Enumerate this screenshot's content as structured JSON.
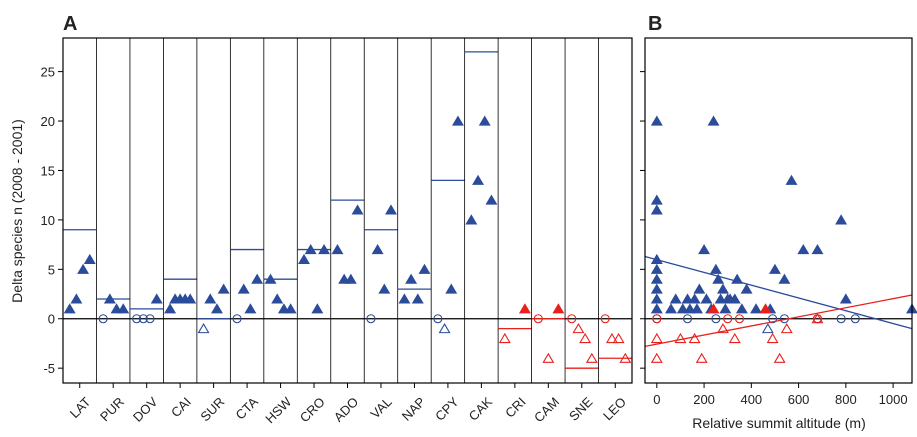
{
  "chart_data": [
    {
      "type": "strip",
      "label": "A",
      "ylabel": "Delta species n (2008 - 2001)",
      "ylim": [
        -6.5,
        28.4
      ],
      "yticks": [
        -5,
        0,
        5,
        10,
        15,
        20,
        25
      ],
      "categories": [
        "LAT",
        "PUR",
        "DOV",
        "CAI",
        "SUR",
        "CTA",
        "HSW",
        "CRO",
        "ADO",
        "VAL",
        "NAP",
        "CPY",
        "CAK",
        "CRI",
        "CAM",
        "SNE",
        "LEO"
      ],
      "colors": [
        "#2b4c9b",
        "#2b4c9b",
        "#2b4c9b",
        "#2b4c9b",
        "#2b4c9b",
        "#2b4c9b",
        "#2b4c9b",
        "#2b4c9b",
        "#2b4c9b",
        "#2b4c9b",
        "#2b4c9b",
        "#2b4c9b",
        "#2b4c9b",
        "#e8201c",
        "#e8201c",
        "#e8201c",
        "#e8201c"
      ],
      "means": [
        9,
        2,
        1,
        4,
        0,
        7,
        4,
        7,
        12,
        9,
        3,
        14,
        27,
        -1,
        0,
        -5,
        -4
      ],
      "open_circles": [
        [],
        [
          0
        ],
        [
          0,
          0,
          0
        ],
        [],
        [],
        [
          0
        ],
        [],
        [],
        [],
        [
          0
        ],
        [],
        [
          0
        ],
        [],
        [],
        [
          0
        ],
        [
          0
        ],
        [
          0
        ]
      ],
      "open_triangles": [
        [],
        [],
        [],
        [],
        [
          -1
        ],
        [],
        [],
        [],
        [],
        [],
        [],
        [
          -1
        ],
        [],
        [
          -2
        ],
        [
          -4
        ],
        [
          -1,
          -2,
          -4
        ],
        [
          -2,
          -2,
          -4
        ]
      ],
      "filled_triangles": [
        [
          1,
          2,
          5,
          6
        ],
        [
          2,
          1,
          1
        ],
        [
          2
        ],
        [
          1,
          2,
          2,
          2,
          2
        ],
        [
          2,
          1,
          3
        ],
        [
          3,
          1,
          4
        ],
        [
          4,
          2,
          1,
          1
        ],
        [
          6,
          7,
          1,
          7
        ],
        [
          7,
          4,
          4,
          11
        ],
        [
          7,
          3,
          11
        ],
        [
          2,
          4,
          2,
          5
        ],
        [
          3,
          20
        ],
        [
          10,
          14,
          20,
          12
        ],
        [
          1
        ],
        [
          1
        ],
        [],
        []
      ]
    },
    {
      "type": "scatter",
      "label": "B",
      "xlabel": "Relative summit altitude (m)",
      "xlim": [
        -50,
        1080
      ],
      "xticks": [
        0,
        200,
        400,
        600,
        800,
        1000
      ],
      "ylim": [
        -6.5,
        28.4
      ],
      "yticks": [
        -5,
        0,
        5,
        10,
        15,
        20,
        25
      ],
      "groups": [
        {
          "marker": "filled-triangle",
          "color": "#2b4c9b",
          "x": [
            0,
            0,
            0,
            0,
            0,
            0,
            0,
            0,
            0,
            60,
            80,
            110,
            130,
            140,
            160,
            170,
            180,
            200,
            210,
            230,
            240,
            250,
            260,
            270,
            280,
            290,
            300,
            310,
            330,
            340,
            360,
            380,
            420,
            480,
            500,
            540,
            570,
            620,
            680,
            780,
            800,
            1080
          ],
          "y": [
            20,
            12,
            11,
            6,
            5,
            4,
            3,
            2,
            1,
            1,
            2,
            1,
            2,
            1,
            2,
            1,
            3,
            7,
            2,
            1,
            20,
            5,
            4,
            2,
            3,
            1,
            2,
            2,
            2,
            4,
            1,
            3,
            1,
            1,
            5,
            4,
            14,
            7,
            7,
            10,
            2,
            1
          ]
        },
        {
          "marker": "open-circle",
          "color": "#2b4c9b",
          "x": [
            0,
            130,
            250,
            490,
            540,
            680,
            780,
            840
          ],
          "y": [
            0,
            0,
            0,
            0,
            0,
            0,
            0,
            0
          ]
        },
        {
          "marker": "open-triangle",
          "color": "#2b4c9b",
          "x": [
            470
          ],
          "y": [
            -1
          ]
        },
        {
          "marker": "filled-triangle",
          "color": "#e8201c",
          "x": [
            240,
            460
          ],
          "y": [
            1,
            1
          ]
        },
        {
          "marker": "open-circle",
          "color": "#e8201c",
          "x": [
            0,
            300,
            350,
            680
          ],
          "y": [
            0,
            0,
            0,
            0
          ]
        },
        {
          "marker": "open-triangle",
          "color": "#e8201c",
          "x": [
            0,
            0,
            100,
            160,
            190,
            280,
            330,
            490,
            520,
            550,
            680
          ],
          "y": [
            -4,
            -2,
            -2,
            -2,
            -4,
            -1,
            -2,
            -2,
            -4,
            -1,
            0
          ]
        }
      ],
      "fits": [
        {
          "color": "#2b4c9b",
          "x": [
            -50,
            1080
          ],
          "y": [
            6.3,
            -1
          ]
        },
        {
          "color": "#e8201c",
          "x": [
            -50,
            1080
          ],
          "y": [
            -2.8,
            2.4
          ]
        }
      ]
    }
  ]
}
